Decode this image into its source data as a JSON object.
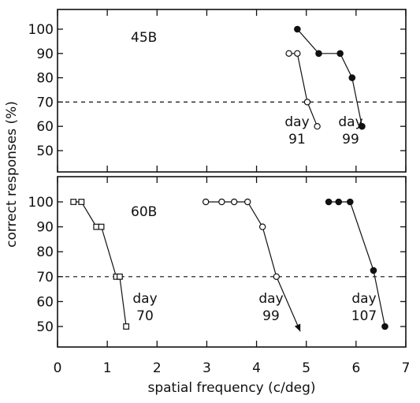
{
  "chart_data": {
    "type": "line",
    "xlabel": "spatial frequency  (c/deg)",
    "ylabel": "correct responses (%)",
    "xlim": [
      0,
      7
    ],
    "x_ticks": [
      "0",
      "1",
      "2",
      "3",
      "4",
      "5",
      "6",
      "7"
    ],
    "reference_line": 70,
    "panels": [
      {
        "label": "45B",
        "ylim": [
          42,
          108
        ],
        "y_ticks": [
          "100",
          "90",
          "80",
          "70",
          "60",
          "50"
        ],
        "series": [
          {
            "marker": "open-circle",
            "x": [
              4.65,
              4.82,
              5.02,
              5.22
            ],
            "y": [
              90,
              90,
              70,
              60
            ],
            "annotation": [
              "day",
              "91"
            ]
          },
          {
            "marker": "filled-circle",
            "x": [
              4.82,
              5.25,
              5.68,
              5.92,
              6.12
            ],
            "y": [
              100,
              90,
              90,
              80,
              60
            ],
            "annotation": [
              "day",
              "99"
            ]
          }
        ]
      },
      {
        "label": "60B",
        "ylim": [
          42,
          108
        ],
        "y_ticks": [
          "100",
          "90",
          "80",
          "70",
          "60",
          "50"
        ],
        "series": [
          {
            "marker": "open-square",
            "x": [
              0.32,
              0.48,
              0.78,
              0.88,
              1.18,
              1.25,
              1.38
            ],
            "y": [
              100,
              100,
              90,
              90,
              70,
              70,
              50
            ],
            "annotation": [
              "day",
              "70"
            ]
          },
          {
            "marker": "open-circle",
            "x": [
              2.98,
              3.3,
              3.55,
              3.82,
              4.12,
              4.4
            ],
            "y": [
              100,
              100,
              100,
              100,
              90,
              70
            ],
            "arrow_to": [
              4.88,
              48
            ],
            "annotation": [
              "day",
              "99"
            ]
          },
          {
            "marker": "filled-circle",
            "x": [
              5.45,
              5.65,
              5.88,
              6.35,
              6.58
            ],
            "y": [
              100,
              100,
              100,
              72.5,
              50
            ],
            "annotation": [
              "day",
              "107"
            ]
          }
        ]
      }
    ]
  }
}
